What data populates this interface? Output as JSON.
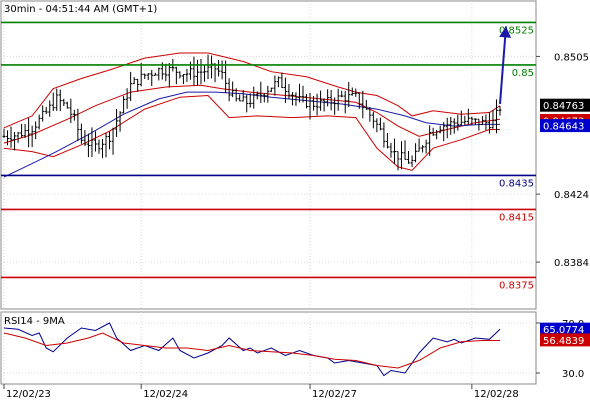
{
  "header": {
    "timestamp": "30min - 04:51:44 AM (GMT+1)"
  },
  "chart_data": [
    {
      "type": "ohlc",
      "panel": "price",
      "ylim": [
        0.8357,
        0.8537
      ],
      "grid": true,
      "yticks": [
        "0.8505",
        "0.8424",
        "0.8384"
      ],
      "levels": [
        {
          "value": 0.8525,
          "label": "0.8525",
          "color": "#008000"
        },
        {
          "value": 0.85,
          "label": "0.85",
          "color": "#008000"
        },
        {
          "value": 0.8435,
          "label": "0.8435",
          "color": "#00008b"
        },
        {
          "value": 0.8415,
          "label": "0.8415",
          "color": "#cc0000"
        },
        {
          "value": 0.8375,
          "label": "0.8375",
          "color": "#cc0000"
        }
      ],
      "tags": [
        {
          "value": 0.84763,
          "label": "0.84763",
          "bg": "#000000",
          "fg": "#ffffff"
        },
        {
          "value": 0.84673,
          "label": "0.84673",
          "bg": "#cc0000",
          "fg": "#ffffff"
        },
        {
          "value": 0.84643,
          "label": "0.84643",
          "bg": "#0000cc",
          "fg": "#ffffff"
        }
      ],
      "forecast": {
        "from": 0.8477,
        "to": 0.8525
      },
      "close_path": [
        [
          0,
          0.8458
        ],
        [
          4,
          0.8459
        ],
        [
          8,
          0.8463
        ],
        [
          12,
          0.8472
        ],
        [
          15,
          0.848
        ],
        [
          18,
          0.8475
        ],
        [
          20,
          0.8468
        ],
        [
          22,
          0.8456
        ],
        [
          26,
          0.8452
        ],
        [
          30,
          0.8458
        ],
        [
          33,
          0.8472
        ],
        [
          36,
          0.8488
        ],
        [
          40,
          0.8494
        ],
        [
          44,
          0.8497
        ],
        [
          48,
          0.8497
        ],
        [
          52,
          0.8495
        ],
        [
          56,
          0.8496
        ],
        [
          60,
          0.8498
        ],
        [
          62,
          0.8494
        ],
        [
          64,
          0.8485
        ],
        [
          66,
          0.8479
        ],
        [
          69,
          0.8478
        ],
        [
          72,
          0.8481
        ],
        [
          75,
          0.8486
        ],
        [
          78,
          0.849
        ],
        [
          81,
          0.8485
        ],
        [
          84,
          0.8479
        ],
        [
          88,
          0.8477
        ],
        [
          92,
          0.8478
        ],
        [
          96,
          0.8481
        ],
        [
          100,
          0.8481
        ],
        [
          102,
          0.8476
        ],
        [
          105,
          0.8468
        ],
        [
          108,
          0.8458
        ],
        [
          111,
          0.8448
        ],
        [
          114,
          0.8444
        ],
        [
          116,
          0.8443
        ],
        [
          118,
          0.845
        ],
        [
          121,
          0.846
        ],
        [
          124,
          0.8464
        ],
        [
          128,
          0.8466
        ],
        [
          132,
          0.8467
        ],
        [
          136,
          0.8466
        ],
        [
          139,
          0.8466
        ],
        [
          141,
          0.8475
        ]
      ],
      "bollinger": {
        "upper": [
          [
            0,
            0.8463
          ],
          [
            8,
            0.847
          ],
          [
            14,
            0.8486
          ],
          [
            22,
            0.8492
          ],
          [
            30,
            0.8497
          ],
          [
            40,
            0.8504
          ],
          [
            50,
            0.8507
          ],
          [
            58,
            0.8507
          ],
          [
            62,
            0.8505
          ],
          [
            68,
            0.8502
          ],
          [
            76,
            0.8496
          ],
          [
            86,
            0.8493
          ],
          [
            95,
            0.8487
          ],
          [
            100,
            0.8484
          ],
          [
            106,
            0.8482
          ],
          [
            112,
            0.8476
          ],
          [
            116,
            0.847
          ],
          [
            122,
            0.8473
          ],
          [
            130,
            0.8471
          ],
          [
            138,
            0.8472
          ],
          [
            141,
            0.8476
          ]
        ],
        "middle": [
          [
            0,
            0.8454
          ],
          [
            8,
            0.8459
          ],
          [
            18,
            0.8468
          ],
          [
            26,
            0.8476
          ],
          [
            36,
            0.8484
          ],
          [
            46,
            0.8487
          ],
          [
            56,
            0.8488
          ],
          [
            62,
            0.8486
          ],
          [
            70,
            0.8484
          ],
          [
            80,
            0.8482
          ],
          [
            90,
            0.848
          ],
          [
            100,
            0.8478
          ],
          [
            106,
            0.8472
          ],
          [
            112,
            0.8464
          ],
          [
            118,
            0.8458
          ],
          [
            126,
            0.8462
          ],
          [
            134,
            0.8466
          ],
          [
            141,
            0.8468
          ]
        ],
        "lower": [
          [
            0,
            0.8451
          ],
          [
            8,
            0.8449
          ],
          [
            14,
            0.8446
          ],
          [
            22,
            0.8453
          ],
          [
            30,
            0.8461
          ],
          [
            40,
            0.8474
          ],
          [
            50,
            0.8481
          ],
          [
            58,
            0.8482
          ],
          [
            64,
            0.8469
          ],
          [
            72,
            0.847
          ],
          [
            82,
            0.8469
          ],
          [
            92,
            0.847
          ],
          [
            100,
            0.8469
          ],
          [
            106,
            0.8451
          ],
          [
            112,
            0.844
          ],
          [
            116,
            0.8438
          ],
          [
            122,
            0.8451
          ],
          [
            130,
            0.8456
          ],
          [
            138,
            0.8462
          ],
          [
            141,
            0.8462
          ]
        ]
      },
      "moving_average": [
        [
          0,
          0.8434
        ],
        [
          6,
          0.844
        ],
        [
          14,
          0.8448
        ],
        [
          24,
          0.8459
        ],
        [
          34,
          0.8471
        ],
        [
          44,
          0.848
        ],
        [
          52,
          0.8484
        ],
        [
          60,
          0.8484
        ],
        [
          68,
          0.8483
        ],
        [
          76,
          0.8481
        ],
        [
          86,
          0.8479
        ],
        [
          96,
          0.8477
        ],
        [
          106,
          0.8474
        ],
        [
          114,
          0.847
        ],
        [
          120,
          0.8466
        ],
        [
          128,
          0.8464
        ],
        [
          136,
          0.8465
        ],
        [
          141,
          0.8465
        ]
      ],
      "x_ticks": [
        {
          "bar": 0,
          "label": "12/02/23"
        },
        {
          "bar": 39,
          "label": "12/02/24"
        },
        {
          "bar": 87,
          "label": "12/02/27"
        },
        {
          "bar": 133,
          "label": "12/02/28"
        }
      ]
    },
    {
      "type": "line",
      "panel": "indicator",
      "title": "RSI14 - 9MA",
      "ylim": [
        22,
        78
      ],
      "yticks": [
        "70.0",
        "30.0"
      ],
      "tags": [
        {
          "value": 65.0774,
          "label": "65.0774",
          "bg": "#0000cc",
          "fg": "#ffffff"
        },
        {
          "value": 56.4839,
          "label": "56.4839",
          "bg": "#cc0000",
          "fg": "#ffffff"
        }
      ],
      "series": [
        {
          "color": "#00008b",
          "values": [
            [
              0,
              66
            ],
            [
              4,
              65
            ],
            [
              8,
              60
            ],
            [
              10,
              62
            ],
            [
              12,
              50
            ],
            [
              14,
              47
            ],
            [
              18,
              58
            ],
            [
              22,
              66
            ],
            [
              26,
              64
            ],
            [
              30,
              70
            ],
            [
              32,
              58
            ],
            [
              36,
              48
            ],
            [
              40,
              52
            ],
            [
              44,
              48
            ],
            [
              48,
              58
            ],
            [
              50,
              48
            ],
            [
              54,
              42
            ],
            [
              58,
              46
            ],
            [
              62,
              52
            ],
            [
              64,
              58
            ],
            [
              68,
              48
            ],
            [
              70,
              50
            ],
            [
              72,
              46
            ],
            [
              76,
              50
            ],
            [
              80,
              44
            ],
            [
              84,
              48
            ],
            [
              88,
              44
            ],
            [
              92,
              42
            ],
            [
              94,
              38
            ],
            [
              98,
              40
            ],
            [
              102,
              38
            ],
            [
              106,
              36
            ],
            [
              108,
              28
            ],
            [
              110,
              32
            ],
            [
              114,
              30
            ],
            [
              118,
              46
            ],
            [
              120,
              52
            ],
            [
              122,
              58
            ],
            [
              126,
              55
            ],
            [
              128,
              57
            ],
            [
              130,
              54
            ],
            [
              134,
              58
            ],
            [
              138,
              57
            ],
            [
              141,
              65
            ]
          ]
        },
        {
          "color": "#cc0000",
          "values": [
            [
              0,
              62
            ],
            [
              6,
              58
            ],
            [
              12,
              52
            ],
            [
              18,
              54
            ],
            [
              24,
              58
            ],
            [
              28,
              62
            ],
            [
              34,
              54
            ],
            [
              40,
              52
            ],
            [
              46,
              50
            ],
            [
              52,
              50
            ],
            [
              58,
              48
            ],
            [
              64,
              52
            ],
            [
              70,
              48
            ],
            [
              76,
              47
            ],
            [
              82,
              46
            ],
            [
              88,
              44
            ],
            [
              94,
              41
            ],
            [
              100,
              40
            ],
            [
              106,
              36
            ],
            [
              112,
              34
            ],
            [
              118,
              40
            ],
            [
              124,
              50
            ],
            [
              130,
              55
            ],
            [
              136,
              56
            ],
            [
              141,
              56
            ]
          ]
        }
      ],
      "x_ticks": [
        {
          "bar": 0,
          "label": "12/02/23"
        },
        {
          "bar": 39,
          "label": "12/02/24"
        },
        {
          "bar": 87,
          "label": "12/02/27"
        },
        {
          "bar": 133,
          "label": "12/02/28"
        }
      ]
    }
  ]
}
